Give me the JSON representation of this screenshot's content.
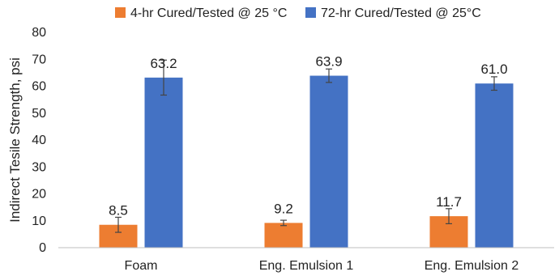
{
  "chart_data": {
    "type": "bar",
    "title": "",
    "xlabel": "",
    "ylabel": "Indirect Tesile Strength, psi",
    "ylim": [
      0,
      80
    ],
    "yticks": [
      0,
      10,
      20,
      30,
      40,
      50,
      60,
      70,
      80
    ],
    "grid": false,
    "legend_position": "top",
    "categories": [
      "Foam",
      "Eng. Emulsion 1",
      "Eng. Emulsion 2"
    ],
    "series": [
      {
        "name": "4-hr Cured/Tested @ 25 °C",
        "color": "#ED7D31",
        "values": [
          8.5,
          9.2,
          11.7
        ],
        "labels": [
          "8.5",
          "9.2",
          "11.7"
        ],
        "error": [
          2.8,
          1.0,
          2.8
        ]
      },
      {
        "name": "72-hr Cured/Tested @ 25°C",
        "color": "#4472C4",
        "values": [
          63.2,
          63.9,
          61.0
        ],
        "labels": [
          "63.2",
          "63.9",
          "61.0"
        ],
        "error": [
          6.5,
          2.5,
          2.5
        ]
      }
    ]
  }
}
